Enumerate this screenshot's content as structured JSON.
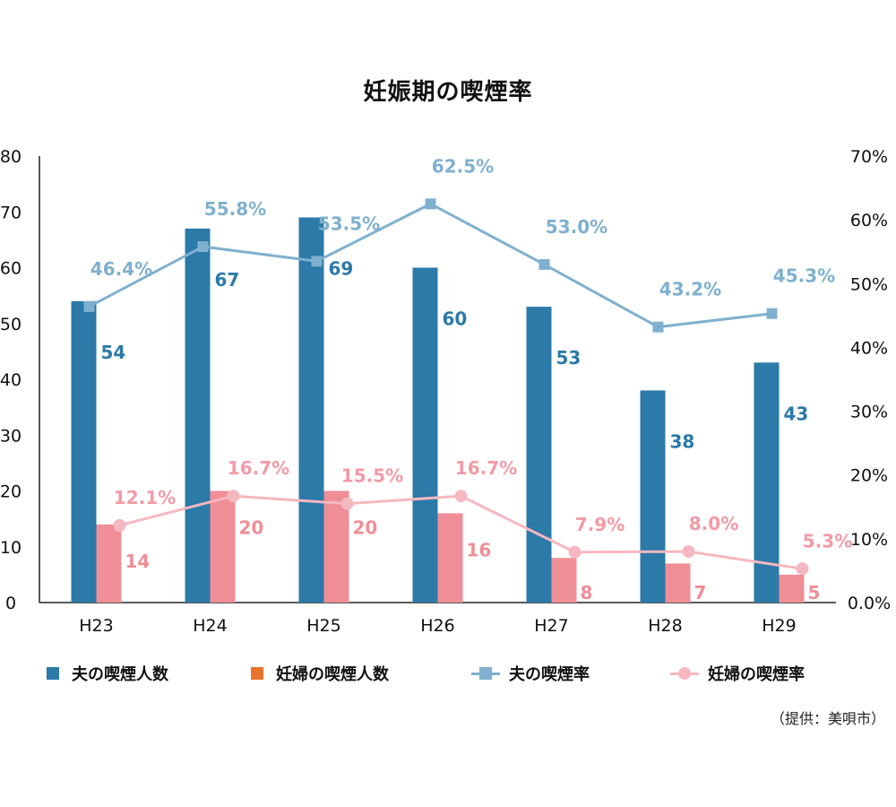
{
  "title": "妊娠期の喫煙率",
  "source": "（提供：美唄市）",
  "legend": {
    "husband_count": "夫の喫煙人数",
    "pregnant_count": "妊婦の喫煙人数",
    "husband_rate": "夫の喫煙率",
    "pregnant_rate": "妊婦の喫煙率"
  },
  "colors": {
    "husband_bar": "#2b7aa8",
    "pregnant_bar": "#ef8e96",
    "pregnant_legend_swatch": "#e8732a",
    "husband_line": "#7fb0cf",
    "pregnant_line": "#f6b8c0",
    "husband_bar_label": "#2b7aa8",
    "pregnant_bar_label": "#ef8e96",
    "husband_rate_label": "#7fb0cf",
    "pregnant_rate_label": "#f29aa5"
  },
  "chart_data": {
    "type": "bar",
    "title": "妊娠期の喫煙率",
    "categories": [
      "H23",
      "H24",
      "H25",
      "H26",
      "H27",
      "H28",
      "H29"
    ],
    "y_left": {
      "min": 0,
      "max": 80,
      "ticks": [
        "0",
        "10",
        "20",
        "30",
        "40",
        "50",
        "60",
        "70",
        "80"
      ]
    },
    "y_right": {
      "min": 0,
      "max": 70,
      "ticks": [
        "0.0%",
        "10%",
        "20%",
        "30%",
        "40%",
        "50%",
        "60%",
        "70%"
      ]
    },
    "series": [
      {
        "name": "夫の喫煙人数",
        "type": "bar",
        "axis": "left",
        "values": [
          54,
          67,
          69,
          60,
          53,
          38,
          43
        ],
        "labels": [
          "54",
          "67",
          "69",
          "60",
          "53",
          "38",
          "43"
        ]
      },
      {
        "name": "妊婦の喫煙人数",
        "type": "bar",
        "axis": "left",
        "values": [
          14,
          20,
          20,
          16,
          8,
          7,
          5
        ],
        "labels": [
          "14",
          "20",
          "20",
          "16",
          "8",
          "7",
          "5"
        ]
      },
      {
        "name": "夫の喫煙率",
        "type": "line",
        "axis": "right",
        "values": [
          46.4,
          55.8,
          53.5,
          62.5,
          53.0,
          43.2,
          45.3
        ],
        "labels": [
          "46.4%",
          "55.8%",
          "53.5%",
          "62.5%",
          "53.0%",
          "43.2%",
          "45.3%"
        ]
      },
      {
        "name": "妊婦の喫煙率",
        "type": "line",
        "axis": "right",
        "values": [
          12.1,
          16.7,
          15.5,
          16.7,
          7.9,
          8.0,
          5.3
        ],
        "labels": [
          "12.1%",
          "16.7%",
          "15.5%",
          "16.7%",
          "7.9%",
          "8.0%",
          "5.3%"
        ]
      }
    ],
    "grid": false,
    "legend_position": "bottom"
  }
}
